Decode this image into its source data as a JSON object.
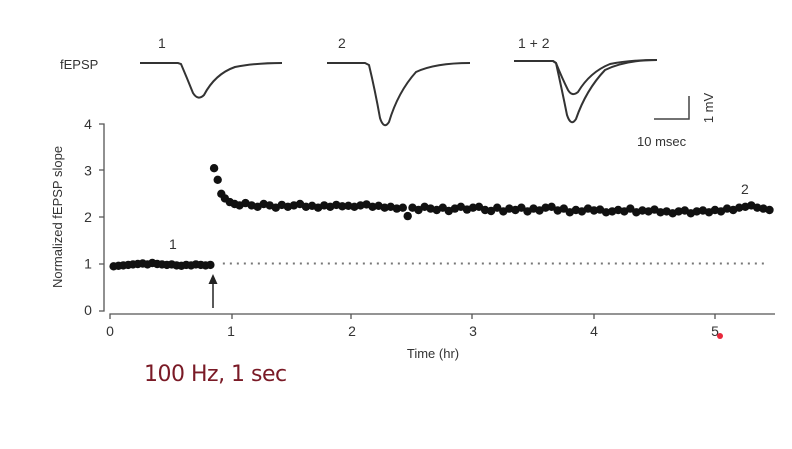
{
  "traces": {
    "row_label": "fEPSP",
    "items": [
      {
        "label": "1",
        "description": "baseline fEPSP trace, smaller amplitude"
      },
      {
        "label": "2",
        "description": "post-tetanus fEPSP trace, larger amplitude"
      },
      {
        "label": "1 + 2",
        "description": "overlay of traces 1 and 2"
      }
    ],
    "scale_bar": {
      "vertical": "1 mV",
      "horizontal": "10 msec"
    }
  },
  "caption": "100 Hz, 1 sec",
  "chart_data": {
    "type": "scatter",
    "title": "",
    "xlabel": "Time (hr)",
    "ylabel": "Normalized fEPSP slope",
    "xlim": [
      0,
      5.5
    ],
    "ylim": [
      0,
      4
    ],
    "xticks": [
      0,
      1,
      2,
      3,
      4,
      5
    ],
    "yticks": [
      0,
      1,
      2,
      3,
      4
    ],
    "grid": false,
    "reference_line": {
      "y": 1,
      "style": "dotted",
      "x_range": [
        0.85,
        5.5
      ]
    },
    "annotations": [
      {
        "text": "1",
        "x": 0.53,
        "y": 1.3,
        "meaning": "time of trace 1"
      },
      {
        "text": "2",
        "x": 5.28,
        "y": 2.5,
        "meaning": "time of trace 2"
      },
      {
        "text": "arrow",
        "x": 0.86,
        "y": 0.3,
        "meaning": "tetanus delivered (100 Hz, 1 sec)"
      }
    ],
    "series": [
      {
        "name": "baseline",
        "x": [
          0.03,
          0.07,
          0.11,
          0.15,
          0.19,
          0.23,
          0.27,
          0.31,
          0.35,
          0.39,
          0.43,
          0.47,
          0.51,
          0.55,
          0.59,
          0.63,
          0.67,
          0.71,
          0.75,
          0.79,
          0.83
        ],
        "y": [
          0.94,
          0.95,
          0.96,
          0.97,
          0.98,
          0.99,
          1.0,
          0.98,
          1.01,
          0.99,
          0.98,
          0.97,
          0.98,
          0.96,
          0.95,
          0.97,
          0.96,
          0.98,
          0.97,
          0.96,
          0.97
        ]
      },
      {
        "name": "post-tetanus",
        "x": [
          0.86,
          0.89,
          0.92,
          0.95,
          0.99,
          1.03,
          1.07,
          1.12,
          1.17,
          1.22,
          1.27,
          1.32,
          1.37,
          1.42,
          1.47,
          1.52,
          1.57,
          1.62,
          1.67,
          1.72,
          1.77,
          1.82,
          1.87,
          1.92,
          1.97,
          2.02,
          2.07,
          2.12,
          2.17,
          2.22,
          2.27,
          2.32,
          2.37,
          2.42,
          2.46,
          2.5,
          2.55,
          2.6,
          2.65,
          2.7,
          2.75,
          2.8,
          2.85,
          2.9,
          2.95,
          3.0,
          3.05,
          3.1,
          3.15,
          3.2,
          3.25,
          3.3,
          3.35,
          3.4,
          3.45,
          3.5,
          3.55,
          3.6,
          3.65,
          3.7,
          3.75,
          3.8,
          3.85,
          3.9,
          3.95,
          4.0,
          4.05,
          4.1,
          4.15,
          4.2,
          4.25,
          4.3,
          4.35,
          4.4,
          4.45,
          4.5,
          4.55,
          4.6,
          4.65,
          4.7,
          4.75,
          4.8,
          4.85,
          4.9,
          4.95,
          5.0,
          5.05,
          5.1,
          5.15,
          5.2,
          5.25,
          5.3,
          5.35,
          5.4,
          5.45
        ],
        "y": [
          3.05,
          2.8,
          2.5,
          2.4,
          2.32,
          2.28,
          2.25,
          2.3,
          2.25,
          2.22,
          2.28,
          2.25,
          2.2,
          2.26,
          2.22,
          2.25,
          2.28,
          2.22,
          2.24,
          2.2,
          2.25,
          2.22,
          2.26,
          2.23,
          2.24,
          2.22,
          2.25,
          2.27,
          2.22,
          2.24,
          2.2,
          2.22,
          2.18,
          2.2,
          2.02,
          2.2,
          2.15,
          2.22,
          2.18,
          2.15,
          2.2,
          2.13,
          2.18,
          2.22,
          2.16,
          2.2,
          2.22,
          2.15,
          2.13,
          2.2,
          2.12,
          2.18,
          2.15,
          2.2,
          2.12,
          2.18,
          2.14,
          2.2,
          2.22,
          2.14,
          2.18,
          2.1,
          2.15,
          2.12,
          2.18,
          2.14,
          2.16,
          2.1,
          2.12,
          2.15,
          2.12,
          2.18,
          2.1,
          2.14,
          2.12,
          2.16,
          2.1,
          2.12,
          2.08,
          2.12,
          2.14,
          2.08,
          2.12,
          2.14,
          2.1,
          2.15,
          2.12,
          2.18,
          2.15,
          2.2,
          2.22,
          2.25,
          2.2,
          2.18,
          2.15
        ]
      }
    ]
  }
}
